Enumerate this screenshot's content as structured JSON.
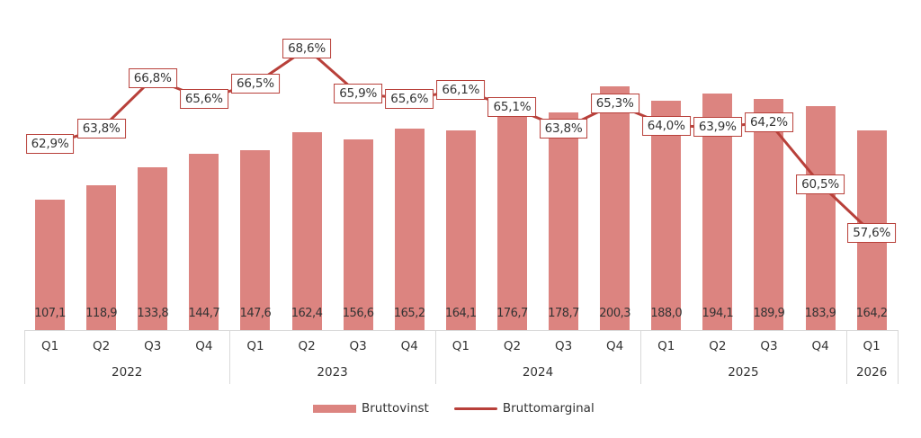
{
  "chart_data": {
    "type": "bar",
    "title": "",
    "xlabel": "",
    "ylabel": "",
    "categories": [
      "Q1 2022",
      "Q2 2022",
      "Q3 2022",
      "Q4 2022",
      "Q1 2023",
      "Q2 2023",
      "Q3 2023",
      "Q4 2023",
      "Q1 2024",
      "Q2 2024",
      "Q3 2024",
      "Q4 2024",
      "Q1 2025",
      "Q2 2025",
      "Q3 2025",
      "Q4 2025",
      "Q1 2026"
    ],
    "quarters": [
      "Q1",
      "Q2",
      "Q3",
      "Q4",
      "Q1",
      "Q2",
      "Q3",
      "Q4",
      "Q1",
      "Q2",
      "Q3",
      "Q4",
      "Q1",
      "Q2",
      "Q3",
      "Q4",
      "Q1"
    ],
    "years": [
      {
        "label": "2022",
        "span": 4
      },
      {
        "label": "2023",
        "span": 4
      },
      {
        "label": "2024",
        "span": 4
      },
      {
        "label": "2025",
        "span": 4
      },
      {
        "label": "2026",
        "span": 1
      }
    ],
    "series": [
      {
        "name": "Bruttovinst",
        "type": "bar",
        "color": "#dc8480",
        "values": [
          107.1,
          118.9,
          133.8,
          144.7,
          147.6,
          162.4,
          156.6,
          165.2,
          164.1,
          176.7,
          178.7,
          200.3,
          188.0,
          194.1,
          189.9,
          183.9,
          164.2
        ],
        "labels": [
          "107,1",
          "118,9",
          "133,8",
          "144,7",
          "147,6",
          "162,4",
          "156,6",
          "165,2",
          "164,1",
          "176,7",
          "178,7",
          "200,3",
          "188,0",
          "194,1",
          "189,9",
          "183,9",
          "164,2"
        ]
      },
      {
        "name": "Bruttomarginal",
        "type": "line",
        "color": "#b8403a",
        "values": [
          62.9,
          63.8,
          66.8,
          65.6,
          66.5,
          68.6,
          65.9,
          65.6,
          66.1,
          65.1,
          63.8,
          65.3,
          64.0,
          63.9,
          64.2,
          60.5,
          57.6
        ],
        "labels": [
          "62,9%",
          "63,8%",
          "66,8%",
          "65,6%",
          "66,5%",
          "68,6%",
          "65,9%",
          "65,6%",
          "66,1%",
          "65,1%",
          "63,8%",
          "65,3%",
          "64,0%",
          "63,9%",
          "64,2%",
          "60,5%",
          "57,6%"
        ]
      }
    ],
    "grid": false,
    "legend_position": "bottom"
  },
  "legend": {
    "bar_label": "Bruttovinst",
    "line_label": "Bruttomarginal"
  }
}
